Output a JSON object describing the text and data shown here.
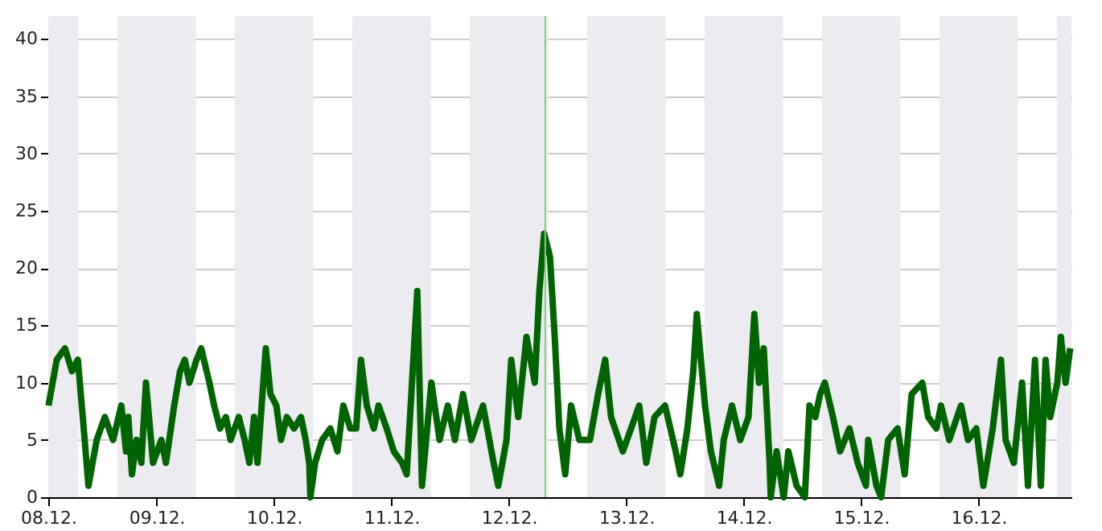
{
  "chart_data": {
    "type": "line",
    "x": [
      "--12-08T01:55",
      "--12-08T03:36",
      "--12-08T05:17",
      "--12-08T06:43",
      "--12-08T07:55",
      "--12-08T09:07",
      "--12-08T10:05",
      "--12-08T11:46",
      "--12-08T13:26",
      "--12-08T15:07",
      "--12-08T16:48",
      "--12-08T17:46",
      "--12-08T18:14",
      "--12-08T18:58",
      "--12-08T19:55",
      "--12-08T20:53",
      "--12-08T21:50",
      "--12-08T23:17",
      "--12-09T00:58",
      "--12-09T01:55",
      "--12-09T03:36",
      "--12-09T04:48",
      "--12-09T05:46",
      "--12-09T06:43",
      "--12-09T08:10",
      "--12-09T09:07",
      "--12-09T10:48",
      "--12-09T11:46",
      "--12-09T12:58",
      "--12-09T14:10",
      "--12-09T15:07",
      "--12-09T16:48",
      "--12-09T18:00",
      "--12-09T18:58",
      "--12-09T19:55",
      "--12-09T20:38",
      "--12-09T22:19",
      "--12-09T23:17",
      "--12-10T00:29",
      "--12-10T01:26",
      "--12-10T02:38",
      "--12-10T04:05",
      "--12-10T05:31",
      "--12-10T06:29",
      "--12-10T07:12",
      "--12-10T07:26",
      "--12-10T08:24",
      "--12-10T09:50",
      "--12-10T11:31",
      "--12-10T12:58",
      "--12-10T14:10",
      "--12-10T15:36",
      "--12-10T16:48",
      "--12-10T17:46",
      "--12-10T18:58",
      "--12-10T20:24",
      "--12-10T21:22",
      "--12-10T23:02",
      "--12-11T00:29",
      "--12-11T02:10",
      "--12-11T03:07",
      "--12-11T05:17",
      "--12-11T06:14",
      "--12-11T08:10",
      "--12-11T09:50",
      "--12-11T11:31",
      "--12-11T12:58",
      "--12-11T14:38",
      "--12-11T16:19",
      "--12-11T18:43",
      "--12-11T20:53",
      "--12-11T21:50",
      "--12-11T23:31",
      "--12-12T00:29",
      "--12-12T01:55",
      "--12-12T03:36",
      "--12-12T05:17",
      "--12-12T06:14",
      "--12-12T07:12",
      "--12-12T08:24",
      "--12-12T09:22",
      "--12-12T10:19",
      "--12-12T11:31",
      "--12-12T12:43",
      "--12-12T14:24",
      "--12-12T16:34",
      "--12-12T18:14",
      "--12-12T19:41",
      "--12-12T20:53",
      "--12-12T23:17",
      "--12-13T00:58",
      "--12-13T02:38",
      "--12-13T04:05",
      "--12-13T05:46",
      "--12-13T07:55",
      "--12-13T10:05",
      "--12-13T11:02",
      "--12-13T12:29",
      "--12-13T13:41",
      "--12-13T14:24",
      "--12-13T16:05",
      "--12-13T17:17",
      "--12-13T18:58",
      "--12-13T19:55",
      "--12-13T21:36",
      "--12-13T23:17",
      "--12-14T00:58",
      "--12-14T02:10",
      "--12-14T03:07",
      "--12-14T04:05",
      "--12-14T05:17",
      "--12-14T05:31",
      "--12-14T06:43",
      "--12-14T08:10",
      "--12-14T09:07",
      "--12-14T10:48",
      "--12-14T12:29",
      "--12-14T13:26",
      "--12-14T14:38",
      "--12-14T15:36",
      "--12-14T16:34",
      "--12-14T18:14",
      "--12-14T19:41",
      "--12-14T21:36",
      "--12-14T23:17",
      "--12-15T00:58",
      "--12-15T01:26",
      "--12-15T03:07",
      "--12-15T04:05",
      "--12-15T05:31",
      "--12-15T07:26",
      "--12-15T08:53",
      "--12-15T10:19",
      "--12-15T12:29",
      "--12-15T13:41",
      "--12-15T15:22",
      "--12-15T16:19",
      "--12-15T18:00",
      "--12-15T20:24",
      "--12-15T21:50",
      "--12-15T23:31",
      "--12-16T00:58",
      "--12-16T02:53",
      "--12-16T04:34",
      "--12-16T05:31",
      "--12-16T07:12",
      "--12-16T08:53",
      "--12-16T10:05",
      "--12-16T11:31",
      "--12-16T12:43",
      "--12-16T13:41",
      "--12-16T14:38",
      "--12-16T16:05",
      "--12-16T16:48",
      "--12-16T17:46",
      "--12-16T18:43"
    ],
    "series": [
      {
        "color": "#006400",
        "values": [
          8,
          12,
          13,
          11,
          12,
          6,
          1,
          5,
          7,
          5,
          8,
          4,
          7,
          2,
          5,
          3,
          10,
          3,
          5,
          3,
          8,
          11,
          12,
          10,
          12,
          13,
          10,
          8,
          6,
          7,
          5,
          7,
          5,
          3,
          7,
          3,
          13,
          9,
          8,
          5,
          7,
          6,
          7,
          5,
          3,
          0,
          3,
          5,
          6,
          4,
          8,
          6,
          6,
          12,
          8,
          6,
          8,
          6,
          4,
          3,
          2,
          18,
          1,
          10,
          5,
          8,
          5,
          9,
          5,
          8,
          3,
          1,
          5,
          12,
          7,
          14,
          10,
          18,
          23,
          21,
          14,
          6,
          2,
          8,
          5,
          5,
          9,
          12,
          7,
          4,
          6,
          8,
          3,
          7,
          8,
          4,
          2,
          6,
          11,
          16,
          8,
          4,
          1,
          5,
          8,
          5,
          7,
          16,
          10,
          13,
          3,
          0,
          4,
          0,
          4,
          1,
          0,
          8,
          7,
          9,
          10,
          7,
          4,
          6,
          3,
          1,
          5,
          1,
          0,
          5,
          6,
          2,
          9,
          10,
          7,
          6,
          8,
          5,
          8,
          5,
          6,
          1,
          6,
          12,
          5,
          3,
          10,
          1,
          12,
          1,
          12,
          7,
          10,
          14,
          10,
          13
        ]
      }
    ],
    "xlim": [
      "--12-08T01:52",
      "--12-16T18:58"
    ],
    "xticks": [
      {
        "value": "--12-08T01:52",
        "label": "08.12."
      },
      {
        "value": "--12-09",
        "label": "09.12."
      },
      {
        "value": "--12-10",
        "label": "10.12."
      },
      {
        "value": "--12-11",
        "label": "11.12."
      },
      {
        "value": "--12-12",
        "label": "12.12."
      },
      {
        "value": "--12-13",
        "label": "13.12."
      },
      {
        "value": "--12-14",
        "label": "14.12."
      },
      {
        "value": "--12-15",
        "label": "15.12."
      },
      {
        "value": "--12-16",
        "label": "16.12."
      }
    ],
    "ylim": [
      0,
      42
    ],
    "yticks": [
      0,
      5,
      10,
      15,
      20,
      25,
      30,
      35,
      40
    ],
    "grid": true,
    "line_style": "solid",
    "ref_lines": [
      {
        "axis": "x",
        "value": "--12-12T07:26",
        "color": "#88c888"
      }
    ],
    "bands": [
      {
        "axis": "x",
        "from": "--12-08T01:52",
        "to": "--12-08T08:00",
        "color": "#ebebf0"
      },
      {
        "axis": "x",
        "from": "--12-08T16:00",
        "to": "--12-09T08:00",
        "color": "#ebebf0"
      },
      {
        "axis": "x",
        "from": "--12-09T16:00",
        "to": "--12-10T08:00",
        "color": "#ebebf0"
      },
      {
        "axis": "x",
        "from": "--12-10T16:00",
        "to": "--12-11T08:00",
        "color": "#ebebf0"
      },
      {
        "axis": "x",
        "from": "--12-11T16:00",
        "to": "--12-12T08:00",
        "color": "#ebebf0"
      },
      {
        "axis": "x",
        "from": "--12-12T16:00",
        "to": "--12-13T08:00",
        "color": "#ebebf0"
      },
      {
        "axis": "x",
        "from": "--12-13T16:00",
        "to": "--12-14T08:00",
        "color": "#ebebf0"
      },
      {
        "axis": "x",
        "from": "--12-14T16:00",
        "to": "--12-15T08:00",
        "color": "#ebebf0"
      },
      {
        "axis": "x",
        "from": "--12-15T16:00",
        "to": "--12-16T08:00",
        "color": "#ebebf0"
      },
      {
        "axis": "x",
        "from": "--12-16T16:00",
        "to": "--12-16T18:58",
        "color": "#ebebf0"
      }
    ]
  }
}
